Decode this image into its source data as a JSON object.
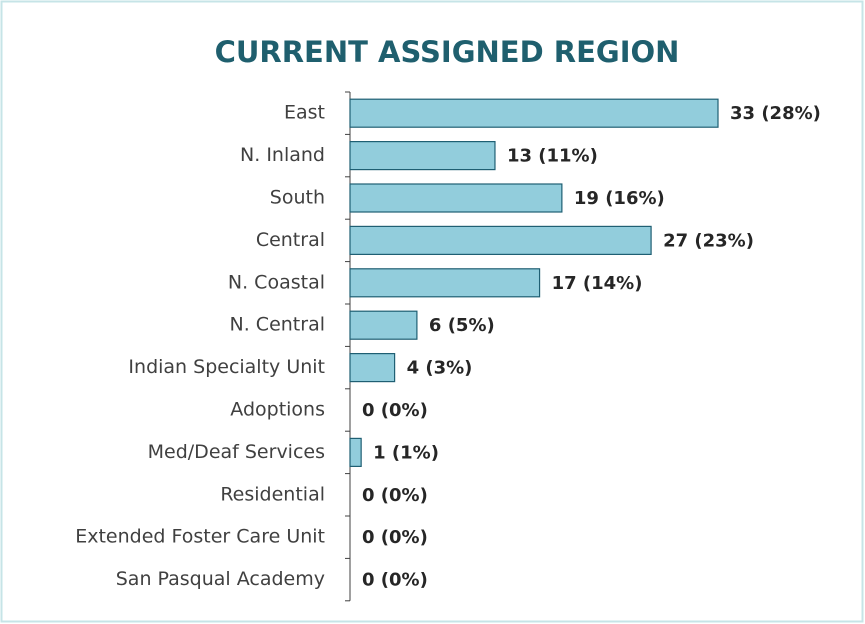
{
  "chart_data": {
    "type": "bar",
    "orientation": "horizontal",
    "title": "CURRENT ASSIGNED REGION",
    "categories": [
      "East",
      "N. Inland",
      "South",
      "Central",
      "N. Coastal",
      "N. Central",
      "Indian Specialty Unit",
      "Adoptions",
      "Med/Deaf Services",
      "Residential",
      "Extended Foster Care Unit",
      "San Pasqual Academy"
    ],
    "values": [
      33,
      13,
      19,
      27,
      17,
      6,
      4,
      0,
      1,
      0,
      0,
      0
    ],
    "value_labels": [
      "33 (28%)",
      "13 (11%)",
      "19 (16%)",
      "27 (23%)",
      "17 (14%)",
      "6 (5%)",
      "4 (3%)",
      "0 (0%)",
      "1 (1%)",
      "0 (0%)",
      "0 (0%)",
      "0 (0%)"
    ],
    "color": "#92cddc",
    "edge_color": "#1f5f73"
  }
}
